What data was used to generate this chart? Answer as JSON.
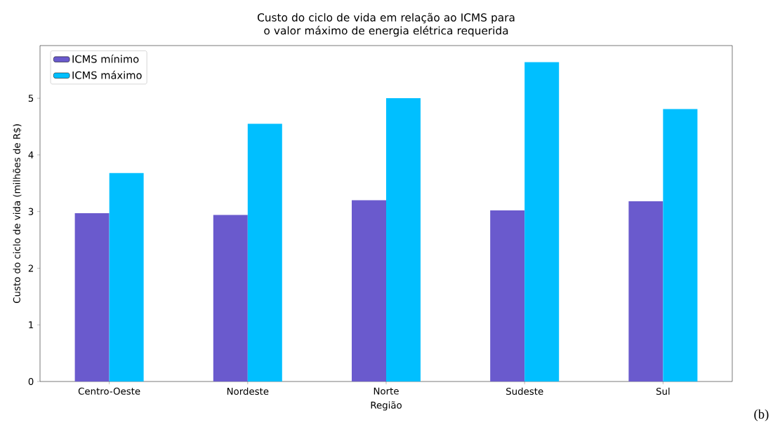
{
  "chart_data": {
    "type": "bar",
    "title": "Custo do ciclo de vida em relação ao ICMS para o valor máximo de energia elétrica requerida",
    "xlabel": "Região",
    "ylabel": "Custo do ciclo de vida (milhões de R$)",
    "categories": [
      "Centro-Oeste",
      "Nordeste",
      "Norte",
      "Sudeste",
      "Sul"
    ],
    "series": [
      {
        "name": "ICMS mínimo",
        "color": "#6a5acd",
        "values": [
          2.97,
          2.94,
          3.2,
          3.02,
          3.18
        ]
      },
      {
        "name": "ICMS máximo",
        "color": "#00bfff",
        "values": [
          3.68,
          4.55,
          5.0,
          5.64,
          4.81
        ]
      }
    ],
    "ylim": [
      0,
      5.93
    ],
    "yticks": [
      0,
      1,
      2,
      3,
      4,
      5
    ],
    "legend": "top left",
    "grid": false,
    "annotations": [
      "(b)"
    ]
  }
}
